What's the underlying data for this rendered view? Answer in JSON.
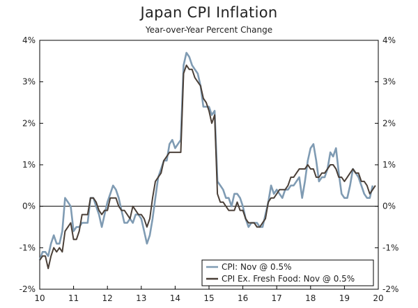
{
  "chart_data": {
    "type": "line",
    "title": "Japan CPI Inflation",
    "subtitle": "Year-over-Year Percent Change",
    "xlabel": "",
    "ylabel": "",
    "xlim": [
      10,
      20
    ],
    "ylim": [
      -2,
      4
    ],
    "x_ticks": [
      "10",
      "11",
      "12",
      "13",
      "14",
      "15",
      "16",
      "17",
      "18",
      "19",
      "20"
    ],
    "y_ticks_left": [
      "4%",
      "3%",
      "2%",
      "1%",
      "0%",
      "-1%",
      "-2%"
    ],
    "y_ticks_right": [
      "4%",
      "3%",
      "2%",
      "1%",
      "0%",
      "-1%",
      "-2%"
    ],
    "legend_position": "bottom-right",
    "colors": {
      "cpi": "#7f9bb3",
      "core": "#4a3f37",
      "axis": "#000000"
    },
    "series": [
      {
        "name": "CPI: Nov @ 0.5%",
        "color": "#7f9bb3",
        "values": [
          -1.3,
          -1.1,
          -1.1,
          -1.2,
          -0.9,
          -0.7,
          -0.9,
          -0.9,
          -0.6,
          0.2,
          0.1,
          0.0,
          -0.6,
          -0.5,
          -0.5,
          -0.4,
          -0.4,
          -0.4,
          0.2,
          0.2,
          0.0,
          -0.2,
          -0.5,
          -0.2,
          0.1,
          0.3,
          0.5,
          0.4,
          0.2,
          -0.1,
          -0.4,
          -0.4,
          -0.3,
          -0.4,
          -0.2,
          -0.2,
          -0.3,
          -0.6,
          -0.9,
          -0.7,
          -0.3,
          0.2,
          0.7,
          0.9,
          1.1,
          1.1,
          1.5,
          1.6,
          1.4,
          1.5,
          1.6,
          3.4,
          3.7,
          3.6,
          3.4,
          3.3,
          3.2,
          2.9,
          2.4,
          2.4,
          2.4,
          2.2,
          2.3,
          0.6,
          0.5,
          0.4,
          0.2,
          0.2,
          0.0,
          0.3,
          0.3,
          0.2,
          0.0,
          -0.3,
          -0.5,
          -0.4,
          -0.4,
          -0.4,
          -0.5,
          -0.5,
          -0.2,
          0.1,
          0.5,
          0.3,
          0.4,
          0.3,
          0.2,
          0.4,
          0.4,
          0.5,
          0.5,
          0.6,
          0.7,
          0.2,
          0.6,
          1.1,
          1.4,
          1.5,
          1.1,
          0.6,
          0.7,
          0.7,
          0.9,
          1.3,
          1.2,
          1.4,
          0.8,
          0.3,
          0.2,
          0.2,
          0.5,
          0.9,
          0.8,
          0.7,
          0.5,
          0.3,
          0.2,
          0.2,
          0.5
        ]
      },
      {
        "name": "CPI Ex. Fresh Food: Nov @ 0.5%",
        "color": "#4a3f37",
        "values": [
          -1.3,
          -1.2,
          -1.2,
          -1.5,
          -1.2,
          -1.0,
          -1.1,
          -1.0,
          -1.1,
          -0.6,
          -0.5,
          -0.4,
          -0.8,
          -0.8,
          -0.6,
          -0.2,
          -0.2,
          -0.2,
          0.2,
          0.2,
          0.1,
          -0.1,
          -0.2,
          -0.1,
          -0.1,
          0.2,
          0.2,
          0.2,
          0.0,
          -0.1,
          -0.1,
          -0.2,
          -0.3,
          0.0,
          -0.1,
          -0.2,
          -0.2,
          -0.3,
          -0.5,
          -0.3,
          0.2,
          0.6,
          0.7,
          0.8,
          1.1,
          1.2,
          1.3,
          1.3,
          1.3,
          1.3,
          1.3,
          3.2,
          3.4,
          3.3,
          3.3,
          3.1,
          3.0,
          2.9,
          2.6,
          2.5,
          2.3,
          2.0,
          2.2,
          0.3,
          0.1,
          0.1,
          0.0,
          -0.1,
          -0.1,
          -0.1,
          0.1,
          -0.1,
          -0.1,
          -0.3,
          -0.4,
          -0.4,
          -0.4,
          -0.5,
          -0.5,
          -0.4,
          -0.3,
          0.1,
          0.2,
          0.2,
          0.3,
          0.4,
          0.4,
          0.4,
          0.5,
          0.7,
          0.7,
          0.8,
          0.9,
          0.9,
          0.9,
          1.0,
          0.9,
          0.9,
          0.7,
          0.7,
          0.8,
          0.8,
          0.9,
          1.0,
          1.0,
          0.9,
          0.7,
          0.7,
          0.6,
          0.7,
          0.8,
          0.9,
          0.8,
          0.8,
          0.6,
          0.6,
          0.5,
          0.3,
          0.4,
          0.5
        ]
      }
    ]
  }
}
